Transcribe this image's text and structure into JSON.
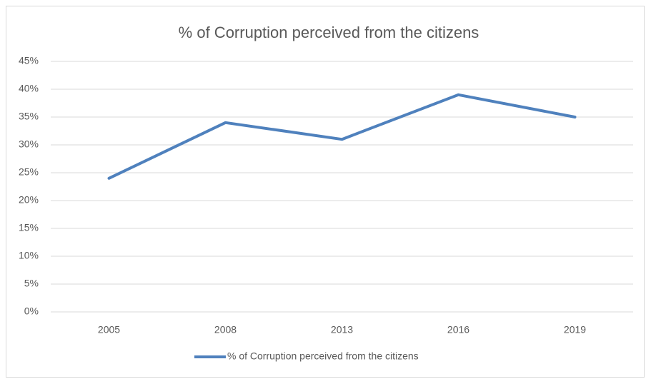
{
  "chart_data": {
    "type": "line",
    "title": "% of Corruption perceived from the citizens",
    "categories": [
      "2005",
      "2008",
      "2013",
      "2016",
      "2019"
    ],
    "series": [
      {
        "name": "% of Corruption perceived from the citizens",
        "color": "#4f81bd",
        "values": [
          24,
          34,
          31,
          39,
          35
        ]
      }
    ],
    "ylim": [
      0,
      45
    ],
    "yticks": [
      {
        "value": 0,
        "label": "0%"
      },
      {
        "value": 5,
        "label": "5%"
      },
      {
        "value": 10,
        "label": "10%"
      },
      {
        "value": 15,
        "label": "15%"
      },
      {
        "value": 20,
        "label": "20%"
      },
      {
        "value": 25,
        "label": "25%"
      },
      {
        "value": 30,
        "label": "30%"
      },
      {
        "value": 35,
        "label": "35%"
      },
      {
        "value": 40,
        "label": "40%"
      },
      {
        "value": 45,
        "label": "45%"
      }
    ],
    "grid": true,
    "legend": "bottom"
  }
}
